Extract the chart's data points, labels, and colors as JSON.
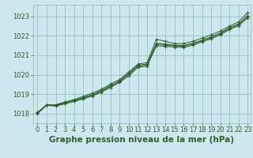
{
  "title": "Graphe pression niveau de la mer (hPa)",
  "bg_color": "#cce8ee",
  "grid_color": "#88bbaa",
  "line_color": "#2d5e2d",
  "ylim": [
    1017.5,
    1023.6
  ],
  "yticks": [
    1018,
    1019,
    1020,
    1021,
    1022,
    1023
  ],
  "xlim": [
    -0.5,
    23.3
  ],
  "xticks": [
    0,
    1,
    2,
    3,
    4,
    5,
    6,
    7,
    8,
    9,
    10,
    11,
    12,
    13,
    14,
    15,
    16,
    17,
    18,
    19,
    20,
    21,
    22,
    23
  ],
  "line1_x": [
    0,
    1,
    2,
    3,
    4,
    5,
    6,
    7,
    8,
    9,
    10,
    11,
    12,
    13,
    14,
    15,
    16,
    17,
    18,
    19,
    20,
    21,
    22,
    23
  ],
  "line1_y": [
    1018.05,
    1018.45,
    1018.45,
    1018.6,
    1018.72,
    1018.88,
    1019.05,
    1019.25,
    1019.52,
    1019.75,
    1020.15,
    1020.55,
    1020.62,
    1021.82,
    1021.72,
    1021.6,
    1021.6,
    1021.72,
    1021.88,
    1022.05,
    1022.25,
    1022.5,
    1022.72,
    1023.2
  ],
  "line2_x": [
    0,
    1,
    2,
    3,
    4,
    5,
    6,
    7,
    8,
    9,
    10,
    11,
    12,
    13,
    14,
    15,
    16,
    17,
    18,
    19,
    20,
    21,
    22,
    23
  ],
  "line2_y": [
    1018.05,
    1018.45,
    1018.42,
    1018.55,
    1018.68,
    1018.82,
    1018.98,
    1019.18,
    1019.45,
    1019.68,
    1020.08,
    1020.48,
    1020.55,
    1021.62,
    1021.58,
    1021.52,
    1021.5,
    1021.62,
    1021.78,
    1021.95,
    1022.15,
    1022.42,
    1022.62,
    1023.05
  ],
  "line3_x": [
    0,
    1,
    2,
    3,
    4,
    5,
    6,
    7,
    8,
    9,
    10,
    11,
    12,
    13,
    14,
    15,
    16,
    17,
    18,
    19,
    20,
    21,
    22,
    23
  ],
  "line3_y": [
    1018.02,
    1018.44,
    1018.4,
    1018.52,
    1018.65,
    1018.78,
    1018.95,
    1019.15,
    1019.4,
    1019.65,
    1020.02,
    1020.44,
    1020.5,
    1021.55,
    1021.52,
    1021.48,
    1021.46,
    1021.58,
    1021.74,
    1021.9,
    1022.1,
    1022.38,
    1022.58,
    1023.0
  ],
  "line4_x": [
    0,
    1,
    2,
    3,
    4,
    5,
    6,
    7,
    8,
    9,
    10,
    11,
    12,
    13,
    14,
    15,
    16,
    17,
    18,
    19,
    20,
    21,
    22,
    23
  ],
  "line4_y": [
    1018.0,
    1018.42,
    1018.38,
    1018.5,
    1018.62,
    1018.75,
    1018.9,
    1019.1,
    1019.35,
    1019.6,
    1019.95,
    1020.38,
    1020.44,
    1021.48,
    1021.46,
    1021.42,
    1021.4,
    1021.52,
    1021.68,
    1021.85,
    1022.05,
    1022.32,
    1022.52,
    1022.92
  ],
  "title_fontsize": 7.5,
  "tick_fontsize": 6
}
